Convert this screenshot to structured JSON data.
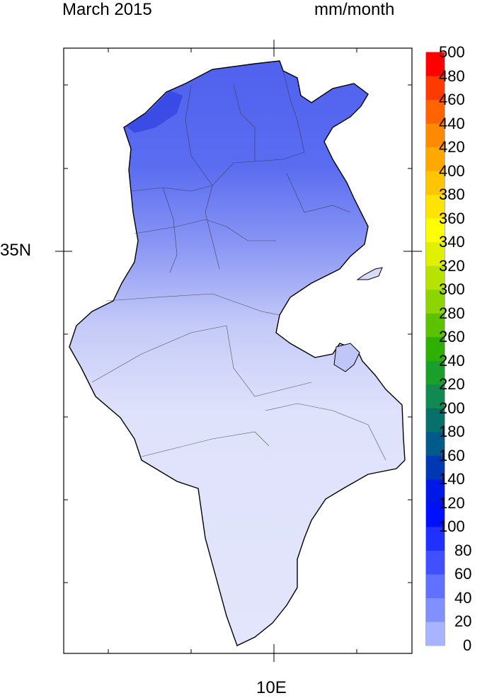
{
  "header": {
    "period": "March 2015",
    "units": "mm/month"
  },
  "axes": {
    "lat_label": "35N",
    "lon_label": "10E"
  },
  "colorbar": {
    "labels": [
      "500",
      "480",
      "460",
      "440",
      "420",
      "400",
      "380",
      "360",
      "340",
      "320",
      "300",
      "280",
      "260",
      "240",
      "220",
      "200",
      "180",
      "160",
      "140",
      "120",
      "100",
      "80",
      "60",
      "40",
      "20",
      "0"
    ],
    "colors": [
      "#ff0000",
      "#ff3a00",
      "#ff6400",
      "#ff8a00",
      "#ffa800",
      "#ffc600",
      "#ffe400",
      "#ffff00",
      "#e0f000",
      "#b8e200",
      "#8ed400",
      "#5cc200",
      "#2fb000",
      "#1aa02a",
      "#108a50",
      "#08706a",
      "#005a8a",
      "#0038b4",
      "#0018e6",
      "#0010ff",
      "#2030ff",
      "#4050ff",
      "#6070ff",
      "#8090ff",
      "#a8b4ff",
      "#d8dcff"
    ]
  }
}
